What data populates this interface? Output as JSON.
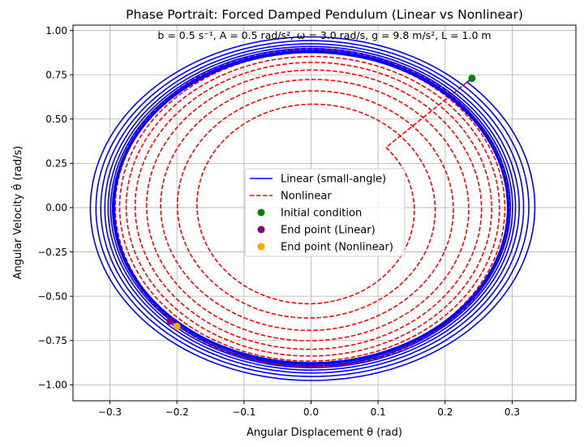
{
  "chart_data": {
    "type": "line",
    "title": "Phase Portrait: Forced Damped Pendulum (Linear vs Nonlinear)",
    "annotation": "b = 0.5 s⁻¹, A = 0.5 rad/s², ω = 3.0 rad/s, g = 9.8 m/s², L = 1.0 m",
    "xlabel": "Angular Displacement θ (rad)",
    "ylabel": "Angular Velocity θ̇ (rad/s)",
    "xlim": [
      -0.355,
      0.395
    ],
    "ylim": [
      -1.09,
      1.03
    ],
    "xticks": [
      -0.3,
      -0.2,
      -0.1,
      0.0,
      0.1,
      0.2,
      0.3
    ],
    "xtick_labels": [
      "−0.3",
      "−0.2",
      "−0.1",
      "0.0",
      "0.1",
      "0.2",
      "0.3"
    ],
    "yticks": [
      -1.0,
      -0.75,
      -0.5,
      -0.25,
      0.0,
      0.25,
      0.5,
      0.75,
      1.0
    ],
    "ytick_labels": [
      "−1.00",
      "−0.75",
      "−0.50",
      "−0.25",
      "0.00",
      "0.25",
      "0.50",
      "0.75",
      "1.00"
    ],
    "grid": true,
    "legend_position": "center",
    "series": [
      {
        "name": "Linear (small-angle)",
        "style": "solid",
        "color": "#0000ff",
        "start": [
          0.24,
          0.73
        ],
        "end": [
          -0.21,
          -0.64
        ],
        "x_center": 0.0,
        "y_center": 0.0,
        "x_amplitude_start": 0.335,
        "x_amplitude_end": 0.293,
        "y_amplitude_start": 0.985,
        "y_amplitude_end": 0.875
      },
      {
        "name": "Nonlinear",
        "style": "dashed",
        "color": "#ff0000",
        "start": [
          0.24,
          0.73
        ],
        "end": [
          -0.2,
          -0.67
        ],
        "x_center": 0.0,
        "y_center": 0.0,
        "x_amplitude_start": 0.15,
        "x_amplitude_end": 0.296,
        "y_amplitude_start": 0.51,
        "y_amplitude_end": 0.9
      }
    ],
    "markers": [
      {
        "name": "Initial condition",
        "x": 0.24,
        "y": 0.73,
        "color": "#008000"
      },
      {
        "name": "End point (Linear)",
        "x": -0.21,
        "y": -0.64,
        "color": "#800080"
      },
      {
        "name": "End point (Nonlinear)",
        "x": -0.2,
        "y": -0.67,
        "color": "#ffa500"
      }
    ]
  }
}
